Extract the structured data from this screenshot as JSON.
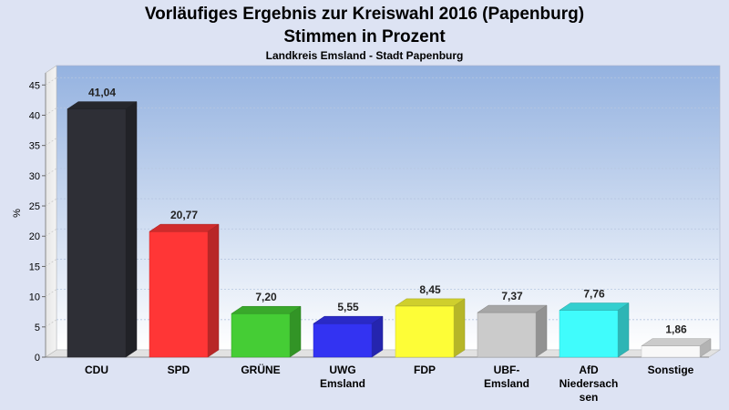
{
  "chart_data": {
    "type": "bar",
    "title": "Vorläufiges Ergebnis zur Kreiswahl 2016 (Papenburg)",
    "subtitle": "Stimmen in Prozent",
    "caption": "Landkreis Emsland - Stadt Papenburg",
    "ylabel": "%",
    "ylim": [
      0,
      47
    ],
    "yticks": [
      0,
      5,
      10,
      15,
      20,
      25,
      30,
      35,
      40,
      45
    ],
    "grid": true,
    "categories": [
      [
        "CDU"
      ],
      [
        "SPD"
      ],
      [
        "GRÜNE"
      ],
      [
        "UWG",
        "Emsland"
      ],
      [
        "FDP"
      ],
      [
        "UBF-",
        "Emsland"
      ],
      [
        "AfD",
        "Niedersach",
        "sen"
      ],
      [
        "Sonstige"
      ]
    ],
    "values": [
      41.04,
      20.77,
      7.2,
      5.55,
      8.45,
      7.37,
      7.76,
      1.86
    ],
    "value_labels": [
      "41,04",
      "20,77",
      "7,20",
      "5,55",
      "8,45",
      "7,37",
      "7,76",
      "1,86"
    ],
    "colors": [
      "#2e2f36",
      "#ff3636",
      "#45cd35",
      "#3333f2",
      "#fdfd37",
      "#cbcbcb",
      "#40fcfc",
      "#f8f8f8"
    ]
  }
}
